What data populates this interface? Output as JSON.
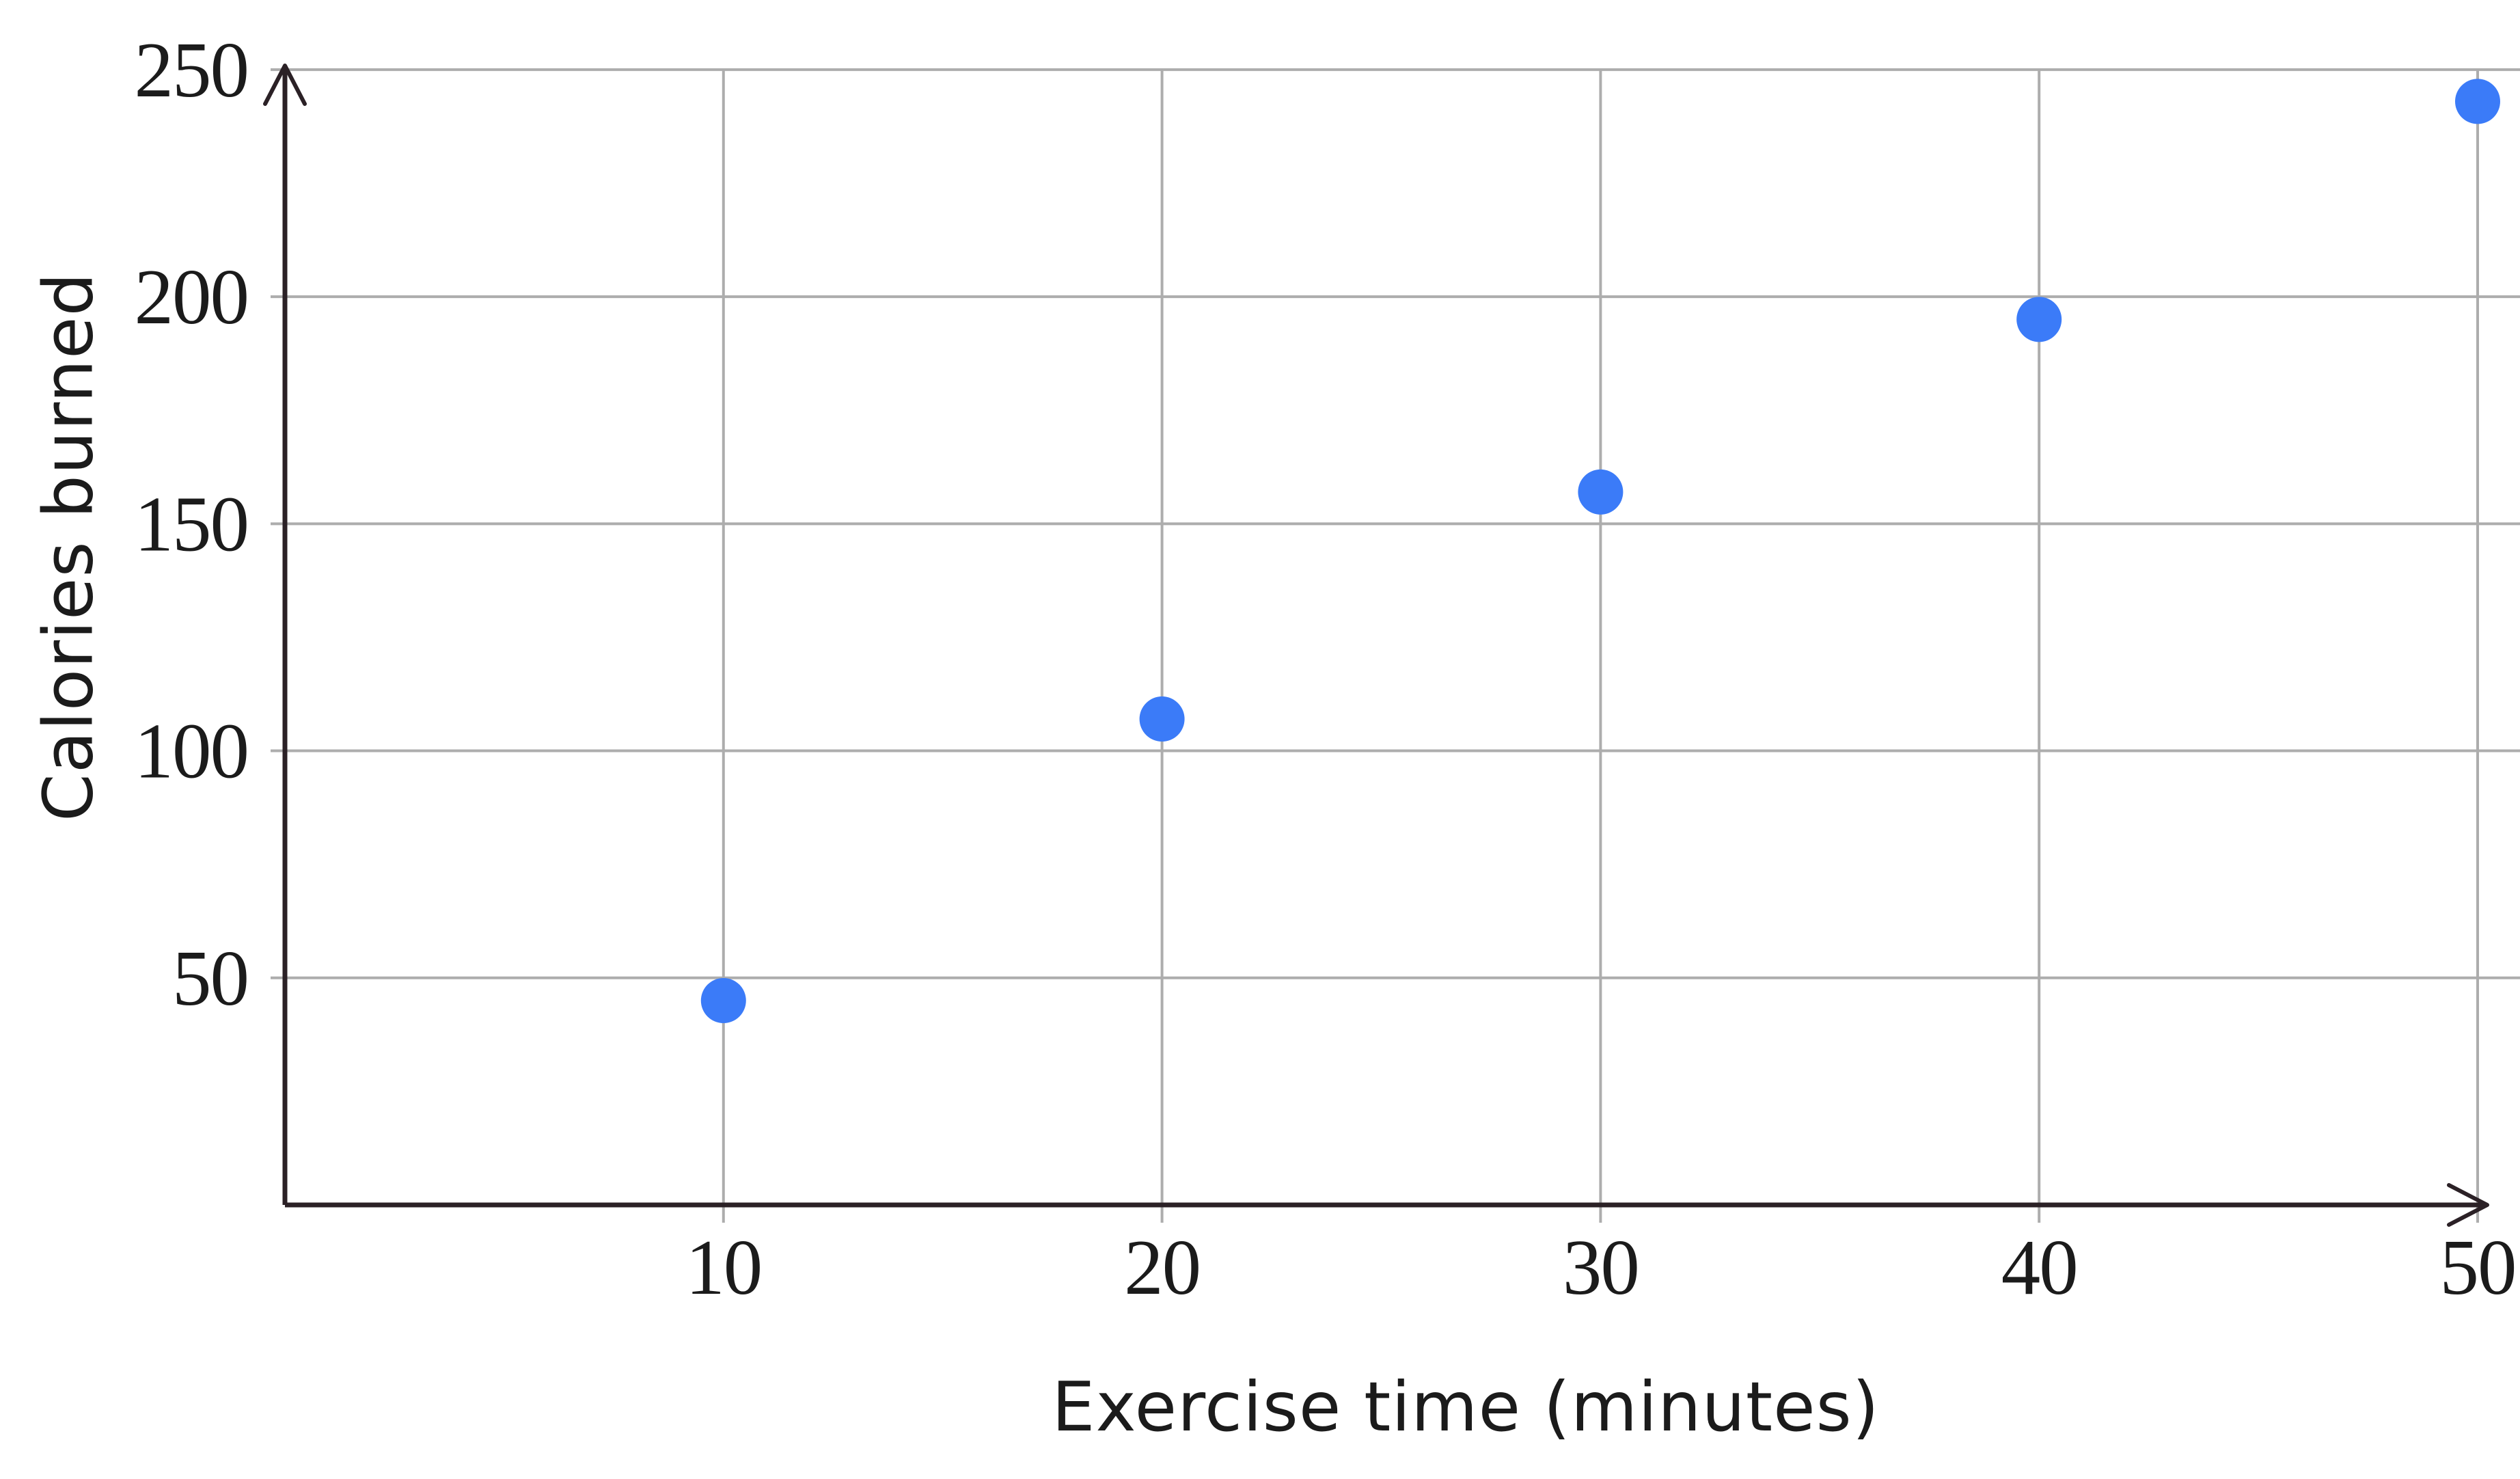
{
  "chart_data": {
    "type": "scatter",
    "title": "",
    "xlabel": "Exercise time (minutes)",
    "ylabel": "Calories burned",
    "points": [
      {
        "x": 10,
        "y": 45
      },
      {
        "x": 20,
        "y": 107
      },
      {
        "x": 30,
        "y": 157
      },
      {
        "x": 40,
        "y": 195
      },
      {
        "x": 50,
        "y": 243
      }
    ],
    "x_ticks": [
      10,
      20,
      30,
      40,
      50
    ],
    "y_ticks": [
      50,
      100,
      150,
      200,
      250
    ],
    "xlim": [
      0,
      50
    ],
    "ylim": [
      0,
      250
    ],
    "grid": true,
    "legend": false,
    "colors": {
      "point": "#3B7BF8",
      "grid": "#ADADAD",
      "axis": "#2B2126",
      "text": "#1B1B1B",
      "background": "#FFFFFF"
    }
  }
}
